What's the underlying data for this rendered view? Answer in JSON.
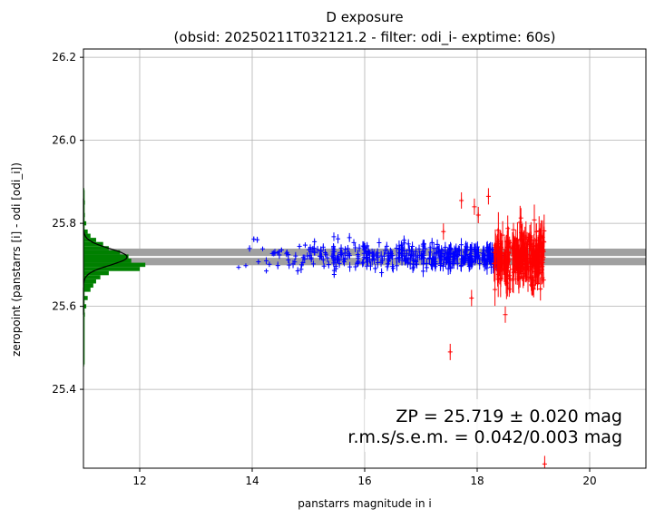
{
  "chart_data": {
    "type": "scatter",
    "title": "D exposure",
    "subtitle": "(obsid: 20250211T032121.2 - filter: odi_i- exptime: 60s)",
    "xlabel": "panstarrs magnitude in i",
    "ylabel": "zeropoint (panstarrs [i] - odi [odi_i])",
    "xlim": [
      11.0,
      21.0
    ],
    "ylim": [
      25.21,
      26.22
    ],
    "x_ticks": [
      12,
      14,
      16,
      18,
      20
    ],
    "y_ticks": [
      25.4,
      25.6,
      25.8,
      26.0,
      26.2
    ],
    "grid": true,
    "zp_value": 25.719,
    "zp_band": [
      25.699,
      25.739
    ],
    "annotation_line1": "ZP = 25.719 ± 0.020 mag",
    "annotation_line2": "r.m.s/s.e.m. = 0.042/0.003 mag",
    "series": [
      {
        "color": "#0000ff",
        "marker": "plus",
        "x_range": [
          13.6,
          18.45
        ],
        "y_center": 25.72,
        "y_spread": 0.018,
        "count": 420
      },
      {
        "color": "#ff0000",
        "marker": "plus-errorbar",
        "x_range": [
          18.3,
          19.2
        ],
        "y_center": 25.715,
        "y_spread": 0.035,
        "count": 260,
        "outliers": [
          {
            "x": 17.52,
            "y": 25.49
          },
          {
            "x": 17.72,
            "y": 25.855
          },
          {
            "x": 17.95,
            "y": 25.84
          },
          {
            "x": 18.02,
            "y": 25.82
          },
          {
            "x": 18.2,
            "y": 25.865
          },
          {
            "x": 17.4,
            "y": 25.78
          },
          {
            "x": 17.9,
            "y": 25.62
          },
          {
            "x": 18.5,
            "y": 25.58
          },
          {
            "x": 19.05,
            "y": 25.78
          },
          {
            "x": 19.2,
            "y": 25.22
          }
        ]
      }
    ],
    "histogram": {
      "color": "#008000",
      "bin_width": 0.01,
      "bins": [
        {
          "y": 25.46,
          "count": 0.5
        },
        {
          "y": 25.53,
          "count": 0.6
        },
        {
          "y": 25.58,
          "count": 1
        },
        {
          "y": 25.6,
          "count": 2
        },
        {
          "y": 25.62,
          "count": 3
        },
        {
          "y": 25.64,
          "count": 5
        },
        {
          "y": 25.65,
          "count": 7
        },
        {
          "y": 25.66,
          "count": 9
        },
        {
          "y": 25.67,
          "count": 12
        },
        {
          "y": 25.68,
          "count": 18
        },
        {
          "y": 25.69,
          "count": 40
        },
        {
          "y": 25.7,
          "count": 44
        },
        {
          "y": 25.71,
          "count": 34
        },
        {
          "y": 25.72,
          "count": 32
        },
        {
          "y": 25.73,
          "count": 26
        },
        {
          "y": 25.74,
          "count": 18
        },
        {
          "y": 25.75,
          "count": 14
        },
        {
          "y": 25.76,
          "count": 9
        },
        {
          "y": 25.77,
          "count": 5
        },
        {
          "y": 25.78,
          "count": 3
        },
        {
          "y": 25.8,
          "count": 2
        },
        {
          "y": 25.82,
          "count": 1
        },
        {
          "y": 25.85,
          "count": 1
        },
        {
          "y": 25.88,
          "count": 0.6
        }
      ],
      "gauss_center": 25.719,
      "gauss_sigma": 0.02,
      "gauss_peak": 31
    }
  }
}
